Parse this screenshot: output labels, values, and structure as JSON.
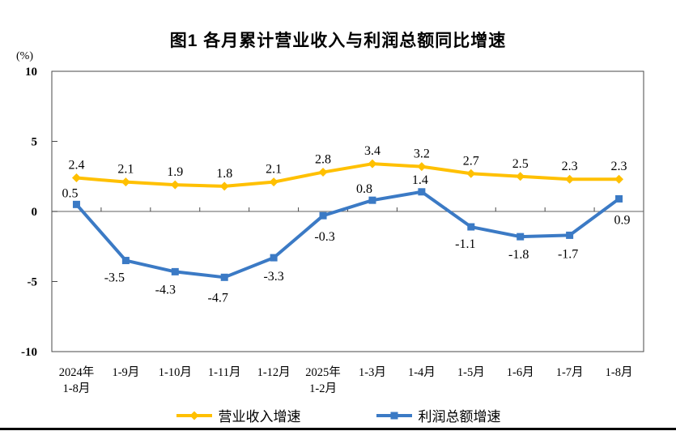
{
  "title": "图1  各月累计营业收入与利润总额同比增速",
  "unit_label": "(%)",
  "colors": {
    "revenue_line": "#FFC000",
    "profit_line": "#3B7AC5",
    "axis_border": "#4a4a4a",
    "zero_line": "#7f7f7f",
    "text": "#000000"
  },
  "chart_data": {
    "type": "line",
    "title": "图1  各月累计营业收入与利润总额同比增速",
    "xlabel": "",
    "ylabel": "(%)",
    "ylim": [
      -10,
      10
    ],
    "yticks": [
      10,
      5,
      0,
      -5,
      -10
    ],
    "grid": false,
    "data_labels": true,
    "legend_position": "bottom",
    "categories": [
      [
        "2024年",
        "1-8月"
      ],
      [
        "1-9月"
      ],
      [
        "1-10月"
      ],
      [
        "1-11月"
      ],
      [
        "1-12月"
      ],
      [
        "2025年",
        "1-2月"
      ],
      [
        "1-3月"
      ],
      [
        "1-4月"
      ],
      [
        "1-5月"
      ],
      [
        "1-6月"
      ],
      [
        "1-7月"
      ],
      [
        "1-8月"
      ]
    ],
    "series": [
      {
        "name": "营业收入增速",
        "color": "#FFC000",
        "marker": "diamond",
        "values": [
          2.4,
          2.1,
          1.9,
          1.8,
          2.1,
          2.8,
          3.4,
          3.2,
          2.7,
          2.5,
          2.3,
          2.3
        ]
      },
      {
        "name": "利润总额增速",
        "color": "#3B7AC5",
        "marker": "square",
        "values": [
          0.5,
          -3.5,
          -4.3,
          -4.7,
          -3.3,
          -0.3,
          0.8,
          1.4,
          -1.1,
          -1.8,
          -1.7,
          0.9
        ]
      }
    ]
  }
}
